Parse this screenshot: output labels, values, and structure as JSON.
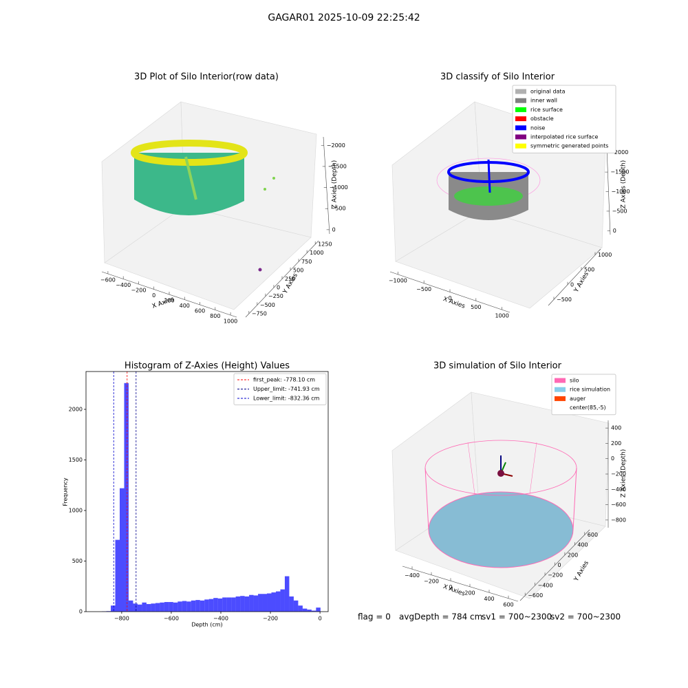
{
  "title": "GAGAR01 2025-10-09 22:25:42",
  "footer": [
    "flag = 0",
    "avgDepth = 784 cm",
    "sv1 = 700~2300",
    "sv2 = 700~2300"
  ],
  "chart_data": [
    {
      "type": "scatter3d",
      "title": "3D Plot of Silo Interior(row data)",
      "xlabel": "X Axies",
      "ylabel": "Y Axies",
      "zlabel": "Z Axies (Depth)",
      "xlim": [
        -680,
        1080
      ],
      "xticks": [
        {
          "value": -600,
          "label": "−600"
        },
        {
          "value": -400,
          "label": "−400"
        },
        {
          "value": -200,
          "label": "−200"
        },
        0,
        200,
        400,
        600,
        800,
        1000
      ],
      "ylim": [
        -850,
        1350
      ],
      "yticks": [
        {
          "value": -750,
          "label": "−750"
        },
        {
          "value": -500,
          "label": "−500"
        },
        {
          "value": -250,
          "label": "−250"
        },
        0,
        250,
        500,
        750,
        1000,
        1250
      ],
      "zlim": [
        -2200,
        100
      ],
      "zticks": [
        0,
        {
          "value": -500,
          "label": "−500"
        },
        {
          "value": -1000,
          "label": "−1000"
        },
        {
          "value": -1500,
          "label": "−1500"
        },
        {
          "value": -2000,
          "label": "−2000"
        }
      ]
    },
    {
      "type": "scatter3d",
      "title": "3D classify of Silo Interior",
      "xlabel": "X Axies",
      "ylabel": "Y Axies",
      "zlabel": "Z Axies (Depth)",
      "xlim": [
        -1150,
        1150
      ],
      "xticks": [
        {
          "value": -1000,
          "label": "−1000"
        },
        {
          "value": -500,
          "label": "−500"
        },
        0,
        500,
        1000
      ],
      "ylim": [
        -700,
        1200
      ],
      "yticks": [
        {
          "value": -500,
          "label": "−500"
        },
        0,
        500,
        1000
      ],
      "zlim": [
        -2100,
        100
      ],
      "zticks": [
        0,
        {
          "value": -500,
          "label": "−500"
        },
        {
          "value": -1000,
          "label": "−1000"
        },
        {
          "value": -1500,
          "label": "−1500"
        },
        {
          "value": -2000,
          "label": "−2000"
        }
      ],
      "legend": [
        {
          "name": "original data",
          "color": "#b0b0b0"
        },
        {
          "name": "inner wall",
          "color": "#808080"
        },
        {
          "name": "rice surface",
          "color": "#00ff00"
        },
        {
          "name": "obstacle",
          "color": "#ff0000"
        },
        {
          "name": "noise",
          "color": "#0000ff"
        },
        {
          "name": "interpolated rice surface",
          "color": "#800080"
        },
        {
          "name": "symmetric generated points",
          "color": "#ffff00"
        }
      ]
    },
    {
      "type": "hist",
      "title": "Histogram of Z-Axies (Height) Values",
      "xlabel": "Depth (cm)",
      "ylabel": "Frequency",
      "color": "#0000ff",
      "bins": [
        -880,
        -862,
        -844,
        -826,
        -808,
        -790,
        -772,
        -754,
        -736,
        -718,
        -700,
        -682,
        -664,
        -646,
        -628,
        -610,
        -592,
        -574,
        -556,
        -538,
        -520,
        -502,
        -484,
        -466,
        -448,
        -430,
        -412,
        -394,
        -376,
        -358,
        -340,
        -322,
        -304,
        -286,
        -268,
        -250,
        -232,
        -214,
        -196,
        -178,
        -160,
        -142,
        -124,
        -106,
        -88,
        -70,
        -52,
        -34,
        -16,
        2
      ],
      "counts": [
        3,
        5,
        60,
        710,
        1220,
        2260,
        110,
        80,
        70,
        90,
        75,
        80,
        85,
        90,
        95,
        95,
        90,
        100,
        105,
        100,
        110,
        115,
        110,
        120,
        125,
        135,
        130,
        140,
        140,
        140,
        150,
        155,
        150,
        165,
        160,
        175,
        175,
        180,
        190,
        200,
        220,
        350,
        150,
        110,
        60,
        30,
        20,
        10,
        40
      ],
      "xlim": [
        -944,
        33
      ],
      "xticks": [
        {
          "value": -800,
          "label": "−800"
        },
        {
          "value": -600,
          "label": "−600"
        },
        {
          "value": -400,
          "label": "−400"
        },
        {
          "value": -200,
          "label": "−200"
        },
        0
      ],
      "ylim": [
        0,
        2374
      ],
      "yticks": [
        0,
        500,
        1000,
        1500,
        2000
      ],
      "vlines": [
        {
          "name": "first_peak: -778.10 cm",
          "value": -778.1,
          "color": "#ff0000"
        },
        {
          "name": "Upper_limit: -741.93 cm",
          "value": -741.93,
          "color": "#00008b"
        },
        {
          "name": "Lower_limit: -832.36 cm",
          "value": -832.36,
          "color": "#0000cd"
        }
      ]
    },
    {
      "type": "scatter3d",
      "title": "3D simulation of Silo Interior",
      "xlabel": "X Axies",
      "ylabel": "Y Axies",
      "zlabel": "Z Axies (Depth)",
      "xlim": [
        -500,
        700
      ],
      "xticks": [
        {
          "value": -400,
          "label": "−400"
        },
        {
          "value": -200,
          "label": "−200"
        },
        0,
        200,
        400,
        600
      ],
      "ylim": [
        -700,
        700
      ],
      "yticks": [
        {
          "value": -600,
          "label": "−600"
        },
        {
          "value": -400,
          "label": "−400"
        },
        {
          "value": -200,
          "label": "−200"
        },
        0,
        200,
        400,
        600
      ],
      "zlim": [
        -900,
        500
      ],
      "zticks": [
        400,
        200,
        0,
        {
          "value": -200,
          "label": "−200"
        },
        {
          "value": -400,
          "label": "−400"
        },
        {
          "value": -600,
          "label": "−600"
        },
        {
          "value": -800,
          "label": "−800"
        }
      ],
      "legend": [
        {
          "name": "silo",
          "color": "#ff69b4"
        },
        {
          "name": "rice simulation",
          "color": "#87ceeb"
        },
        {
          "name": "auger",
          "color": "#ff4500"
        },
        {
          "name": "center(85,-5)",
          "color": "#ffffff"
        }
      ]
    }
  ]
}
